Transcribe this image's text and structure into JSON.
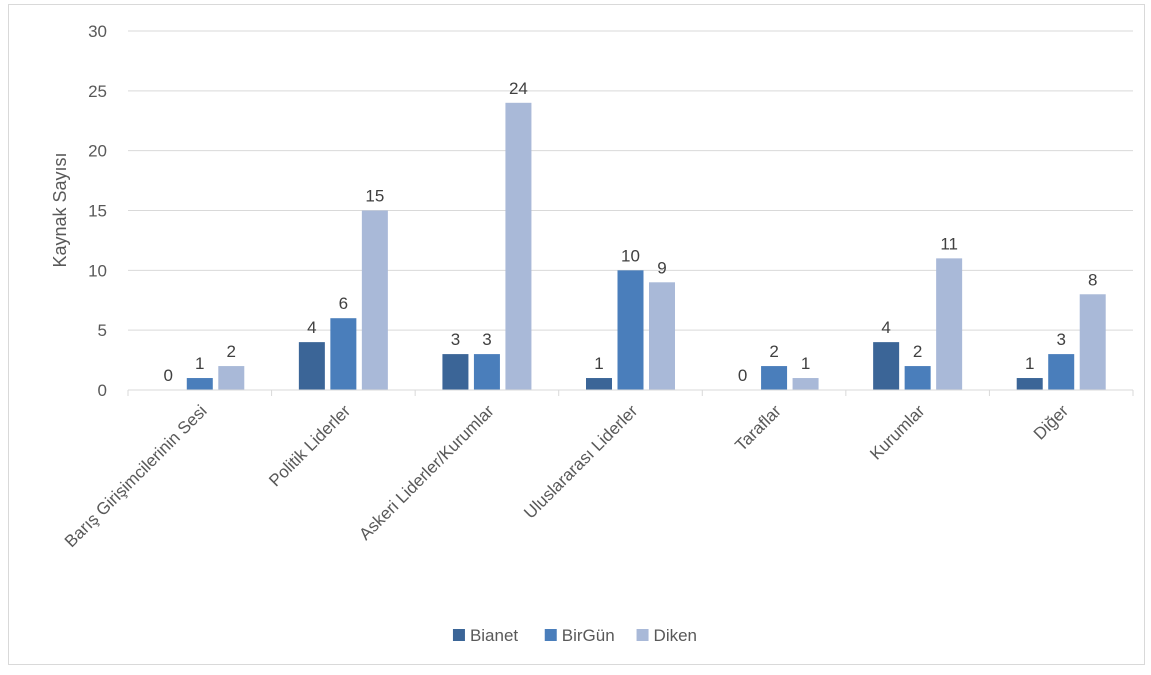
{
  "chart_data": {
    "type": "bar",
    "title": "",
    "xlabel": "",
    "ylabel": "Kaynak Sayısı",
    "ylim": [
      0,
      30
    ],
    "yticks": [
      0,
      5,
      10,
      15,
      20,
      25,
      30
    ],
    "grid": true,
    "legend_position": "bottom",
    "categories": [
      "Barış Girişimcilerinin Sesi",
      "Politik Liderler",
      "Askeri Liderler/Kurumlar",
      "Uluslararası Liderler",
      "Taraflar",
      "Kurumlar",
      "Diğer"
    ],
    "series": [
      {
        "name": "Bianet",
        "color": "#3b6597",
        "values": [
          0,
          4,
          3,
          1,
          0,
          4,
          1
        ]
      },
      {
        "name": "BirGün",
        "color": "#4a7ebb",
        "values": [
          1,
          6,
          3,
          10,
          2,
          2,
          3
        ]
      },
      {
        "name": "Diken",
        "color": "#a9b9d8",
        "values": [
          2,
          15,
          24,
          9,
          1,
          11,
          8
        ]
      }
    ]
  }
}
